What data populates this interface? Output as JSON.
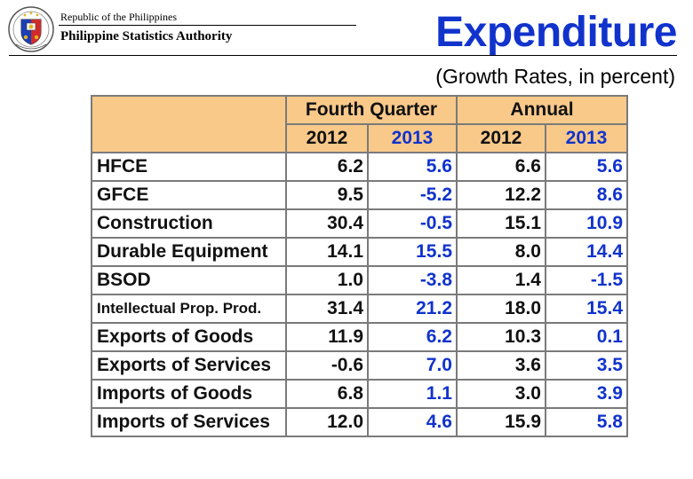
{
  "header": {
    "republic": "Republic of the Philippines",
    "agency": "Philippine Statistics Authority",
    "seal_icon": "philippine-seal-icon"
  },
  "title": "Expenditure",
  "subtitle": "(Growth Rates, in percent)",
  "colors": {
    "title": "#1133cc",
    "header_fill": "#f9c98a",
    "value_2013": "#1133cc",
    "border": "#7a7a7a"
  },
  "table": {
    "groups": [
      "Fourth Quarter",
      "Annual"
    ],
    "years": [
      "2012",
      "2013",
      "2012",
      "2013"
    ],
    "rows": [
      {
        "label": "HFCE",
        "q4_2012": "6.2",
        "q4_2013": "5.6",
        "a_2012": "6.6",
        "a_2013": "5.6"
      },
      {
        "label": "GFCE",
        "q4_2012": "9.5",
        "q4_2013": "-5.2",
        "a_2012": "12.2",
        "a_2013": "8.6"
      },
      {
        "label": "Construction",
        "q4_2012": "30.4",
        "q4_2013": "-0.5",
        "a_2012": "15.1",
        "a_2013": "10.9"
      },
      {
        "label": "Durable Equipment",
        "q4_2012": "14.1",
        "q4_2013": "15.5",
        "a_2012": "8.0",
        "a_2013": "14.4"
      },
      {
        "label": "BSOD",
        "q4_2012": "1.0",
        "q4_2013": "-3.8",
        "a_2012": "1.4",
        "a_2013": "-1.5"
      },
      {
        "label": "Intellectual Prop. Prod.",
        "q4_2012": "31.4",
        "q4_2013": "21.2",
        "a_2012": "18.0",
        "a_2013": "15.4"
      },
      {
        "label": "Exports of Goods",
        "q4_2012": "11.9",
        "q4_2013": "6.2",
        "a_2012": "10.3",
        "a_2013": "0.1"
      },
      {
        "label": "Exports of Services",
        "q4_2012": "-0.6",
        "q4_2013": "7.0",
        "a_2012": "3.6",
        "a_2013": "3.5"
      },
      {
        "label": "Imports of Goods",
        "q4_2012": "6.8",
        "q4_2013": "1.1",
        "a_2012": "3.0",
        "a_2013": "3.9"
      },
      {
        "label": "Imports of Services",
        "q4_2012": "12.0",
        "q4_2013": "4.6",
        "a_2012": "15.9",
        "a_2013": "5.8"
      }
    ]
  }
}
